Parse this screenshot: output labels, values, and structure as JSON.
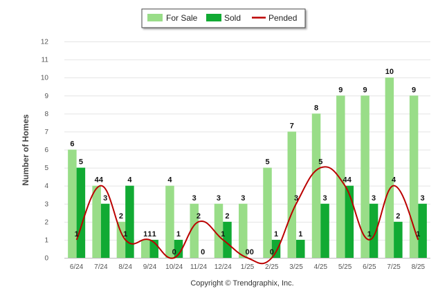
{
  "chart_data": {
    "type": "bar",
    "categories": [
      "6/24",
      "7/24",
      "8/24",
      "9/24",
      "10/24",
      "11/24",
      "12/24",
      "1/25",
      "2/25",
      "3/25",
      "4/25",
      "5/25",
      "6/25",
      "7/25",
      "8/25"
    ],
    "series": [
      {
        "name": "For Sale",
        "type": "bar",
        "color": "#99dd88",
        "values": [
          6,
          4,
          2,
          1,
          4,
          3,
          3,
          3,
          5,
          7,
          8,
          9,
          9,
          10,
          9
        ]
      },
      {
        "name": "Sold",
        "type": "bar",
        "color": "#11aa33",
        "values": [
          5,
          3,
          4,
          1,
          1,
          0,
          2,
          0,
          1,
          1,
          3,
          4,
          3,
          2,
          3
        ]
      },
      {
        "name": "Pended",
        "type": "line",
        "color": "#bb0000",
        "values": [
          1,
          4,
          1,
          1,
          0,
          2,
          1,
          0,
          0,
          3,
          5,
          4,
          1,
          4,
          1
        ]
      }
    ],
    "ylabel": "Number of Homes",
    "ylim": [
      0,
      12
    ],
    "yticks": [
      0,
      1,
      2,
      3,
      4,
      5,
      6,
      7,
      8,
      9,
      10,
      11,
      12
    ],
    "grid": true,
    "legend": "top-center",
    "credit": "Copyright © Trendgraphix, Inc."
  }
}
